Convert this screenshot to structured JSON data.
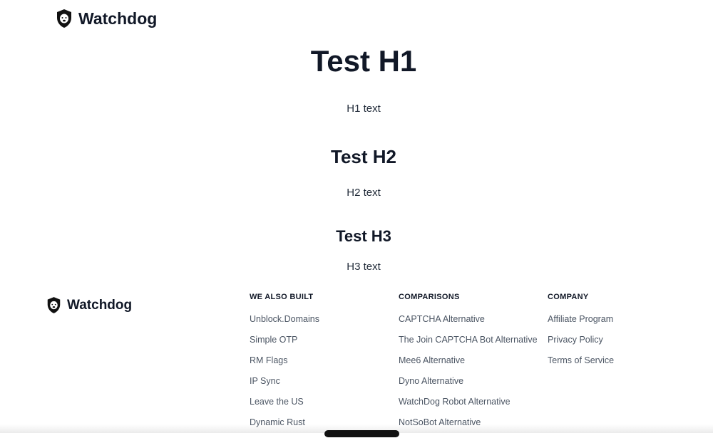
{
  "brand": {
    "name": "Watchdog",
    "icon": "shield-dog-icon"
  },
  "content": [
    {
      "heading": "Test H1",
      "text": "H1 text"
    },
    {
      "heading": "Test H2",
      "text": "H2 text"
    },
    {
      "heading": "Test H3",
      "text": "H3 text"
    }
  ],
  "footer": {
    "columns": [
      {
        "title": "WE ALSO BUILT",
        "links": [
          "Unblock.Domains",
          "Simple OTP",
          "RM Flags",
          "IP Sync",
          "Leave the US",
          "Dynamic Rust"
        ]
      },
      {
        "title": "COMPARISONS",
        "links": [
          "CAPTCHA Alternative",
          "The Join CAPTCHA Bot Alternative",
          "Mee6 Alternative",
          "Dyno Alternative",
          "WatchDog Robot Alternative",
          "NotSoBot Alternative"
        ]
      },
      {
        "title": "COMPANY",
        "links": [
          "Affiliate Program",
          "Privacy Policy",
          "Terms of Service"
        ]
      }
    ]
  }
}
